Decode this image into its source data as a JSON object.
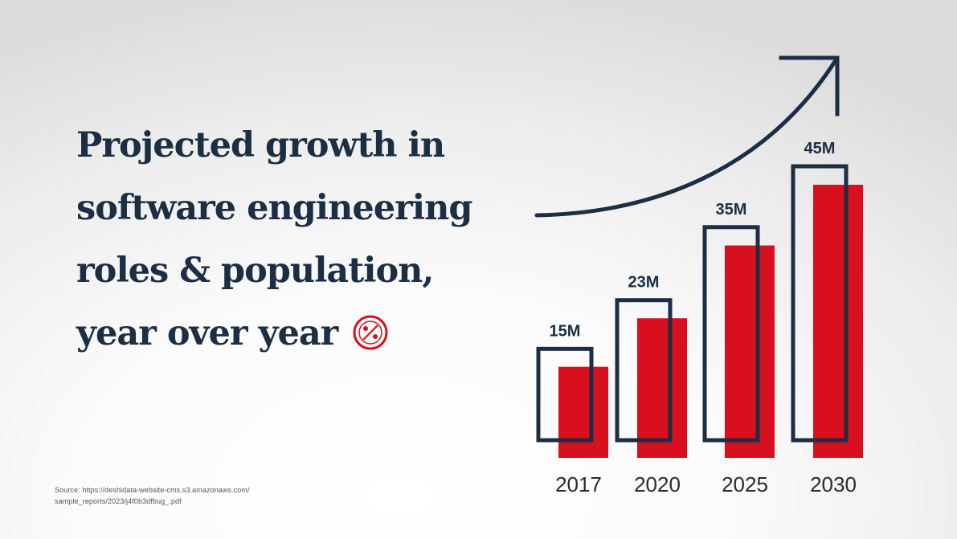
{
  "title_lines": [
    "Projected growth in",
    "software engineering",
    "roles & population,",
    "year over year"
  ],
  "source_lines": [
    "Source: https://deshidata-website-cms.s3.amazonaws.com/",
    "sample_reports/2023/j4f0b3dfbug_.pdf"
  ],
  "colors": {
    "navy": "#1c2e44",
    "red": "#d70f1e",
    "logo": "#d70f1e"
  },
  "icons": [
    "growth-arrow-icon",
    "brand-logo-icon"
  ],
  "chart_data": {
    "type": "bar",
    "categories": [
      "2017",
      "2020",
      "2025",
      "2030"
    ],
    "values": [
      15,
      23,
      35,
      45
    ],
    "data_labels": [
      "15M",
      "23M",
      "35M",
      "45M"
    ],
    "ylim": [
      0,
      50
    ],
    "grid": false,
    "legend": "none",
    "title": "",
    "xlabel": "",
    "ylabel": ""
  }
}
